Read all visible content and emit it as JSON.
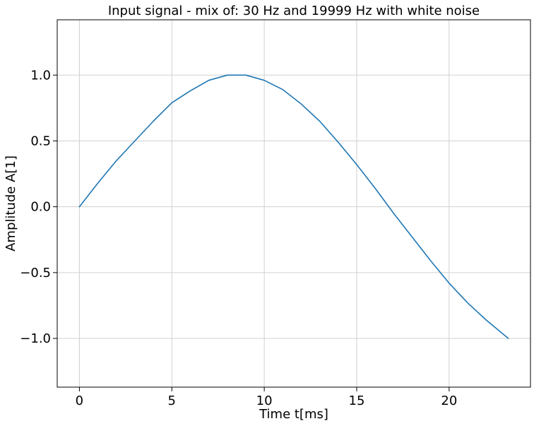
{
  "chart_data": {
    "type": "line",
    "title": "Input signal - mix of: 30 Hz and 19999 Hz with white noise",
    "xlabel": "Time t[ms]",
    "ylabel": "Amplitude A[1]",
    "xlim": [
      -1.2,
      24.4
    ],
    "ylim": [
      -1.37,
      1.42
    ],
    "x_ticks": [
      0,
      5,
      10,
      15,
      20
    ],
    "x_tick_labels": [
      "0",
      "5",
      "10",
      "15",
      "20"
    ],
    "y_ticks": [
      -1.0,
      -0.5,
      0.0,
      0.5,
      1.0
    ],
    "y_tick_labels": [
      "−1.0",
      "−0.5",
      "0.0",
      "0.5",
      "1.0"
    ],
    "grid": true,
    "line_color": "#1f77b4",
    "series": [
      {
        "x": [
          0.0,
          1.0,
          2.0,
          3.0,
          4.0,
          5.0,
          6.0,
          7.0,
          8.0,
          9.0,
          10.0,
          11.0,
          12.0,
          13.0,
          14.0,
          15.0,
          16.0,
          17.0,
          18.0,
          19.0,
          20.0,
          21.0,
          22.0,
          23.2
        ],
        "y": [
          0.0,
          0.18,
          0.35,
          0.5,
          0.65,
          0.79,
          0.88,
          0.96,
          1.0,
          1.0,
          0.96,
          0.89,
          0.78,
          0.65,
          0.49,
          0.32,
          0.14,
          -0.05,
          -0.23,
          -0.41,
          -0.58,
          -0.73,
          -0.86,
          -1.0
        ]
      }
    ]
  }
}
